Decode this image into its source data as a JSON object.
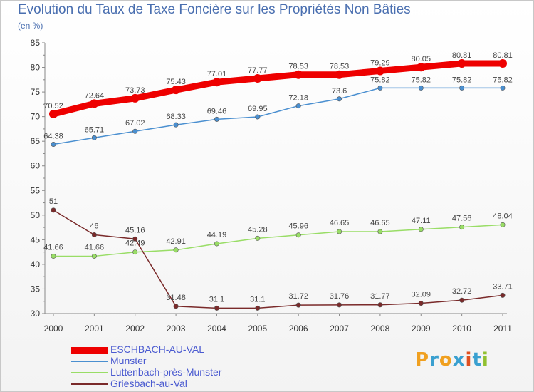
{
  "title": "Evolution du Taux de Taxe Foncière sur les Propriétés Non Bâties",
  "unit": "(en %)",
  "logo": {
    "text": "ProXiti",
    "letters": [
      "P",
      "r",
      "o",
      "x",
      "i",
      "t",
      "i"
    ],
    "colors": [
      "#f0a020",
      "#3aa0d0",
      "#f0a020",
      "#3aa0d0",
      "#e05020",
      "#3aa0d0",
      "#90c030"
    ]
  },
  "chart_data": {
    "type": "line",
    "title": "Evolution du Taux de Taxe Foncière sur les Propriétés Non Bâties",
    "ylabel": "(en %)",
    "xlabel": "",
    "x": [
      "2000",
      "2001",
      "2002",
      "2003",
      "2004",
      "2005",
      "2006",
      "2007",
      "2008",
      "2009",
      "2010",
      "2011"
    ],
    "yticks": [
      30,
      35,
      40,
      45,
      50,
      55,
      60,
      65,
      70,
      75,
      80,
      85
    ],
    "ylim": [
      30,
      85
    ],
    "series": [
      {
        "name": "ESCHBACH-AU-VAL",
        "color": "#ee0000",
        "values": [
          70.52,
          72.64,
          73.73,
          75.43,
          77.01,
          77.77,
          78.53,
          78.53,
          79.29,
          80.05,
          80.81,
          80.81
        ],
        "labels": [
          "70.52",
          "72.64",
          "73.73",
          "75.43",
          "77.01",
          "77.77",
          "78.53",
          "78.53",
          "79.29",
          "80.05",
          "80.81",
          "80.81"
        ]
      },
      {
        "name": "Munster",
        "color": "#4a8fd0",
        "values": [
          64.38,
          65.71,
          67.02,
          68.33,
          69.46,
          69.95,
          72.18,
          73.6,
          75.82,
          75.82,
          75.82,
          75.82
        ],
        "labels": [
          "64.38",
          "65.71",
          "67.02",
          "68.33",
          "69.46",
          "69.95",
          "72.18",
          "73.6",
          "75.82",
          "75.82",
          "75.82",
          "75.82"
        ]
      },
      {
        "name": "Luttenbach-près-Munster",
        "color": "#99dd66",
        "values": [
          41.66,
          41.66,
          42.49,
          42.91,
          44.19,
          45.28,
          45.96,
          46.65,
          46.65,
          47.11,
          47.56,
          48.04
        ],
        "labels": [
          "41.66",
          "41.66",
          "42.49",
          "42.91",
          "44.19",
          "45.28",
          "45.96",
          "46.65",
          "46.65",
          "47.11",
          "47.56",
          "48.04"
        ]
      },
      {
        "name": "Griesbach-au-Val",
        "color": "#7a2a2a",
        "values": [
          51,
          46,
          45.16,
          31.48,
          31.1,
          31.1,
          31.72,
          31.76,
          31.77,
          32.09,
          32.72,
          33.71
        ],
        "labels": [
          "51",
          "46",
          "45.16",
          "31.48",
          "31.1",
          "31.1",
          "31.72",
          "31.76",
          "31.77",
          "32.09",
          "32.72",
          "33.71"
        ]
      }
    ],
    "legend": "bottom-left",
    "grid": false
  }
}
